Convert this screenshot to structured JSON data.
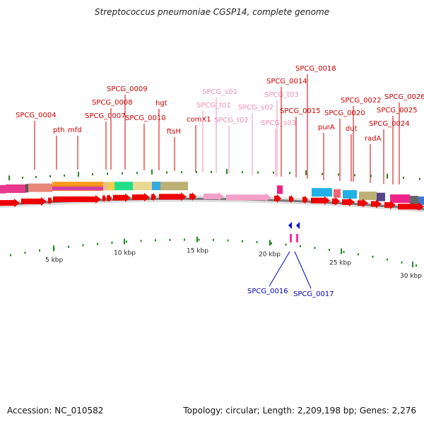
{
  "header": {
    "title": "Streptococcus pneumoniae CGSP14, complete genome"
  },
  "footer": {
    "accession": "Accession: NC_010582",
    "summary": "Topology: circular; Length: 2,209,198 bp; Genes: 2,276"
  },
  "colors": {
    "gene_label": "#cc0000",
    "srna_label": "#f08cb4",
    "reverse_label": "#0000bb",
    "forward_arrow": "#ee0000",
    "srna_arrow": "#f5a0c8",
    "reverse_arrow": "#0000dd",
    "backbone": "#777777",
    "tick": "#228822"
  },
  "gene_labels": [
    {
      "text": "SPCG_0004",
      "color": "red"
    },
    {
      "text": "pth",
      "color": "red"
    },
    {
      "text": "mfd",
      "color": "red"
    },
    {
      "text": "SPCG_0007",
      "color": "red"
    },
    {
      "text": "SPCG_0008",
      "color": "red"
    },
    {
      "text": "SPCG_0009",
      "color": "red"
    },
    {
      "text": "SPCG_0010",
      "color": "red"
    },
    {
      "text": "hgt",
      "color": "red"
    },
    {
      "text": "ftsH",
      "color": "red"
    },
    {
      "text": "comX1",
      "color": "red"
    },
    {
      "text": "SPCG_t01",
      "color": "pink"
    },
    {
      "text": "SPCG_s01",
      "color": "pink"
    },
    {
      "text": "SPCG_t02",
      "color": "pink"
    },
    {
      "text": "SPCG_s02",
      "color": "pink"
    },
    {
      "text": "SPCG_t03",
      "color": "pink"
    },
    {
      "text": "SPCG_s03",
      "color": "pink"
    },
    {
      "text": "SPCG_0014",
      "color": "red"
    },
    {
      "text": "SPCG_0015",
      "color": "red"
    },
    {
      "text": "SPCG_0018",
      "color": "red"
    },
    {
      "text": "purA",
      "color": "red"
    },
    {
      "text": "SPCG_0020",
      "color": "red"
    },
    {
      "text": "dut",
      "color": "red"
    },
    {
      "text": "SPCG_0022",
      "color": "red"
    },
    {
      "text": "radA",
      "color": "red"
    },
    {
      "text": "SPCG_0024",
      "color": "red"
    },
    {
      "text": "SPCG_0025",
      "color": "red"
    },
    {
      "text": "SPCG_0026",
      "color": "red"
    }
  ],
  "reverse_labels": [
    {
      "text": "SPCG_0016"
    },
    {
      "text": "SPCG_0017"
    }
  ],
  "scale_labels": [
    "5 kbp",
    "10 kbp",
    "15 kbp",
    "20 kbp",
    "25 kbp",
    "30 kbp"
  ]
}
